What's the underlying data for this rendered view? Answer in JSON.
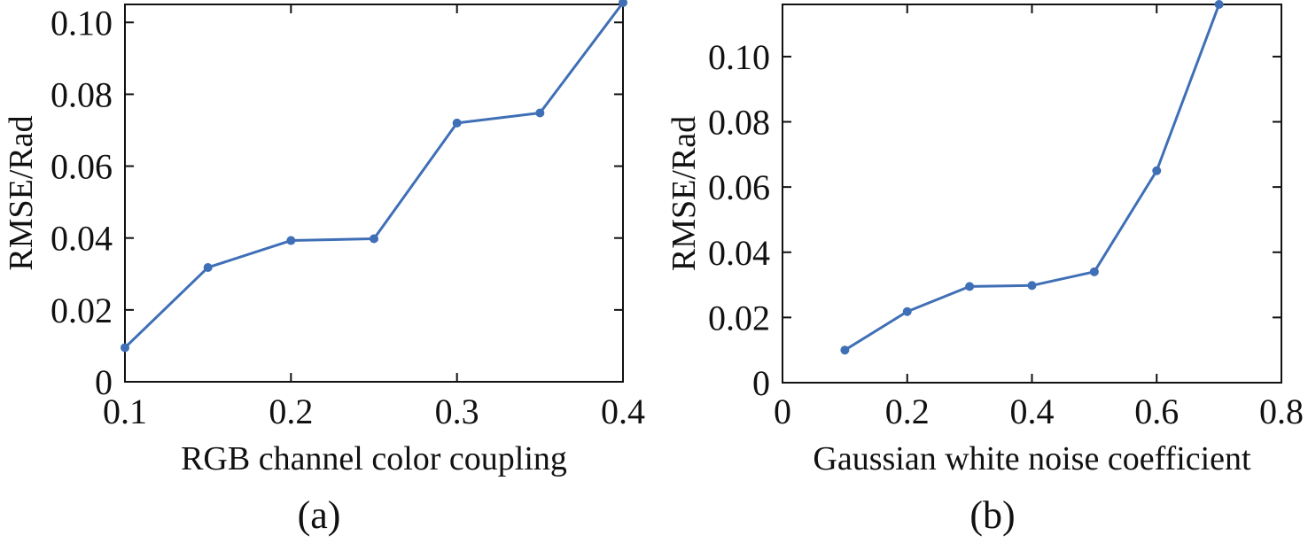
{
  "chart_data": [
    {
      "type": "line",
      "xlabel": "RGB channel color coupling",
      "ylabel": "RMSE/Rad",
      "caption": "(a)",
      "xlim": [
        0.1,
        0.4
      ],
      "ylim": [
        0,
        0.105
      ],
      "xticks": [
        0.1,
        0.2,
        0.3,
        0.4
      ],
      "xtick_labels": [
        "0.1",
        "0.2",
        "0.3",
        "0.4"
      ],
      "yticks": [
        0,
        0.02,
        0.04,
        0.06,
        0.08,
        0.1
      ],
      "ytick_labels": [
        "0",
        "0.02",
        "0.04",
        "0.06",
        "0.08",
        "0.10"
      ],
      "grid": false,
      "series": [
        {
          "color": "#3f6fb6",
          "x": [
            0.1,
            0.15,
            0.2,
            0.25,
            0.3,
            0.35,
            0.4
          ],
          "y": [
            0.0095,
            0.0318,
            0.0393,
            0.0398,
            0.072,
            0.0748,
            0.1055
          ]
        }
      ]
    },
    {
      "type": "line",
      "xlabel": "Gaussian white noise coefficient",
      "ylabel": "RMSE/Rad",
      "caption": "(b)",
      "xlim": [
        0,
        0.8
      ],
      "ylim": [
        0,
        0.116
      ],
      "xticks": [
        0,
        0.2,
        0.4,
        0.6,
        0.8
      ],
      "xtick_labels": [
        "0",
        "0.2",
        "0.4",
        "0.6",
        "0.8"
      ],
      "yticks": [
        0,
        0.02,
        0.04,
        0.06,
        0.08,
        0.1
      ],
      "ytick_labels": [
        "0",
        "0.02",
        "0.04",
        "0.06",
        "0.08",
        "0.10"
      ],
      "grid": false,
      "series": [
        {
          "color": "#3f6fb6",
          "x": [
            0.1,
            0.2,
            0.3,
            0.4,
            0.5,
            0.6,
            0.7
          ],
          "y": [
            0.01,
            0.0218,
            0.0295,
            0.0298,
            0.034,
            0.065,
            0.116
          ]
        }
      ]
    }
  ]
}
